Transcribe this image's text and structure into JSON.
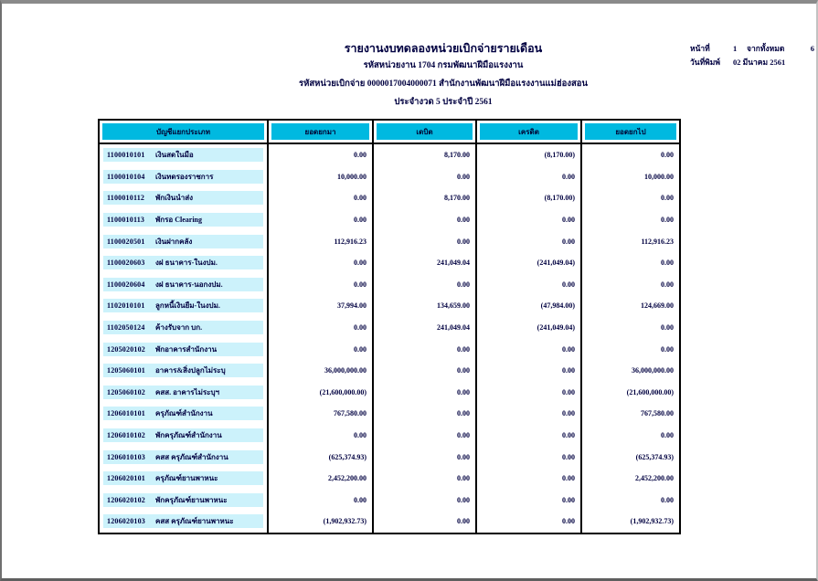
{
  "header": {
    "title": "รายงานงบทดลองหน่วยเบิกจ่ายรายเดือน",
    "agency_line": "รหัสหน่วยงาน 1704 กรมพัฒนาฝีมือแรงงาน",
    "unit_line": "รหัสหน่วยเบิกจ่าย 0000017004000071 สำนักงานพัฒนาฝีมือแรงงานแม่ฮ่องสอน",
    "period_line": "ประจำงวด 5 ประจำปี 2561"
  },
  "page_info": {
    "page_label": "หน้าที่",
    "page_number": "1",
    "total_label": "จากทั้งหมด",
    "total_pages": "6",
    "print_date_label": "วันที่พิมพ์",
    "print_date": "02 มีนาคม 2561"
  },
  "table": {
    "columns": [
      "บัญชีแยกประเภท",
      "ยอดยกมา",
      "เดบิต",
      "เครดิต",
      "ยอดยกไป"
    ],
    "rows": [
      {
        "code": "1100010101",
        "name": "เงินสดในมือ",
        "amounts": [
          "0.00",
          "8,170.00",
          "(8,170.00)",
          "0.00"
        ]
      },
      {
        "code": "1100010104",
        "name": "เงินทดรองราชการ",
        "amounts": [
          "10,000.00",
          "0.00",
          "0.00",
          "10,000.00"
        ]
      },
      {
        "code": "1100010112",
        "name": "พักเงินนำส่ง",
        "amounts": [
          "0.00",
          "8,170.00",
          "(8,170.00)",
          "0.00"
        ]
      },
      {
        "code": "1100010113",
        "name": "พักรอ Clearing",
        "amounts": [
          "0.00",
          "0.00",
          "0.00",
          "0.00"
        ]
      },
      {
        "code": "1100020501",
        "name": "เงินฝากคลัง",
        "amounts": [
          "112,916.23",
          "0.00",
          "0.00",
          "112,916.23"
        ]
      },
      {
        "code": "1100020603",
        "name": "งฝ ธนาคาร-ในงปม.",
        "amounts": [
          "0.00",
          "241,049.04",
          "(241,049.04)",
          "0.00"
        ]
      },
      {
        "code": "1100020604",
        "name": "งฝ ธนาคาร-นอกงปม.",
        "amounts": [
          "0.00",
          "0.00",
          "0.00",
          "0.00"
        ]
      },
      {
        "code": "1102010101",
        "name": "ลูกหนี้เงินยืม-ในงปม.",
        "amounts": [
          "37,994.00",
          "134,659.00",
          "(47,984.00)",
          "124,669.00"
        ]
      },
      {
        "code": "1102050124",
        "name": "ค้างรับจาก บก.",
        "amounts": [
          "0.00",
          "241,049.04",
          "(241,049.04)",
          "0.00"
        ]
      },
      {
        "code": "1205020102",
        "name": "พักอาคารสำนักงาน",
        "amounts": [
          "0.00",
          "0.00",
          "0.00",
          "0.00"
        ]
      },
      {
        "code": "1205060101",
        "name": "อาคาร&สิ่งปลูกไม่ระบุ",
        "amounts": [
          "36,000,000.00",
          "0.00",
          "0.00",
          "36,000,000.00"
        ]
      },
      {
        "code": "1205060102",
        "name": "คสส. อาคารไม่ระบุฯ",
        "amounts": [
          "(21,600,000.00)",
          "0.00",
          "0.00",
          "(21,600,000.00)"
        ]
      },
      {
        "code": "1206010101",
        "name": "ครุภัณฑ์สำนักงาน",
        "amounts": [
          "767,580.00",
          "0.00",
          "0.00",
          "767,580.00"
        ]
      },
      {
        "code": "1206010102",
        "name": "พักครุภัณฑ์สำนักงาน",
        "amounts": [
          "0.00",
          "0.00",
          "0.00",
          "0.00"
        ]
      },
      {
        "code": "1206010103",
        "name": "คสส ครุภัณฑ์สำนักงาน",
        "amounts": [
          "(625,374.93)",
          "0.00",
          "0.00",
          "(625,374.93)"
        ]
      },
      {
        "code": "1206020101",
        "name": "ครุภัณฑ์ยานพาหนะ",
        "amounts": [
          "2,452,200.00",
          "0.00",
          "0.00",
          "2,452,200.00"
        ]
      },
      {
        "code": "1206020102",
        "name": "พักครุภัณฑ์ยานพาหนะ",
        "amounts": [
          "0.00",
          "0.00",
          "0.00",
          "0.00"
        ]
      },
      {
        "code": "1206020103",
        "name": "คสส ครุภัณฑ์ยานพาหนะ",
        "amounts": [
          "(1,902,932.73)",
          "0.00",
          "0.00",
          "(1,902,932.73)"
        ]
      }
    ]
  },
  "colors": {
    "header_fill": "#00b9e0",
    "row_fill": "#ccf2fb",
    "text": "#000040",
    "page_border": "#808080"
  }
}
